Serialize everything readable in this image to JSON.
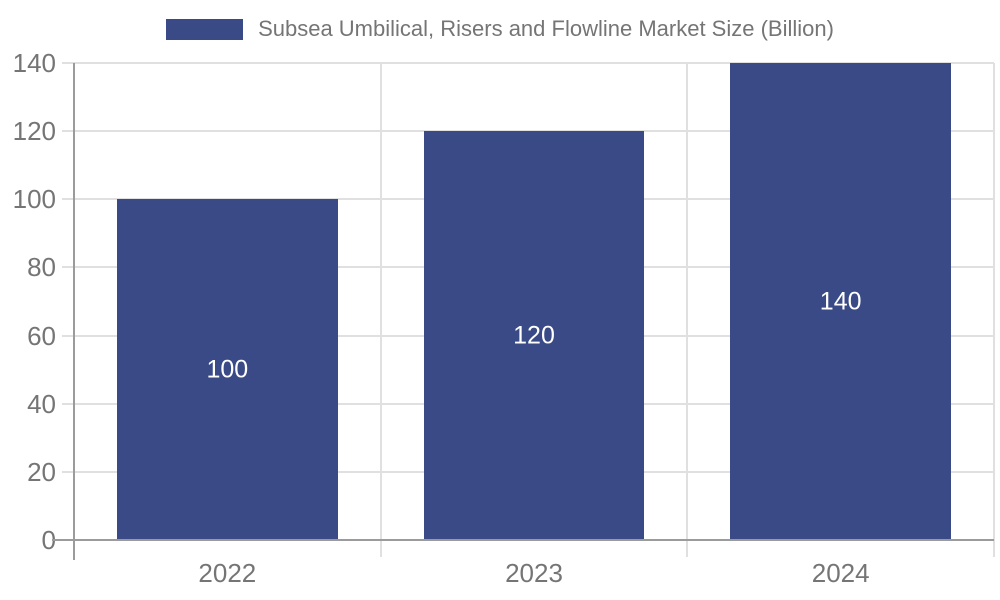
{
  "chart_data": {
    "type": "bar",
    "legend": "Subsea Umbilical, Risers and Flowline Market Size (Billion)",
    "legend_position": "top",
    "categories": [
      "2022",
      "2023",
      "2024"
    ],
    "values": [
      100,
      120,
      140
    ],
    "bar_value_labels": [
      "100",
      "120",
      "140"
    ],
    "yticks": [
      0,
      20,
      40,
      60,
      80,
      100,
      120,
      140
    ],
    "ylim": [
      0,
      140
    ],
    "xlabel": "",
    "ylabel": "",
    "grid": true,
    "colors": {
      "bar": "#394a86",
      "bar_label": "#ffffff",
      "grid": "#e0e0e0",
      "axis": "#9b9b9b",
      "tick_label": "#757575",
      "legend_text": "#757575",
      "background": "#ffffff"
    }
  }
}
